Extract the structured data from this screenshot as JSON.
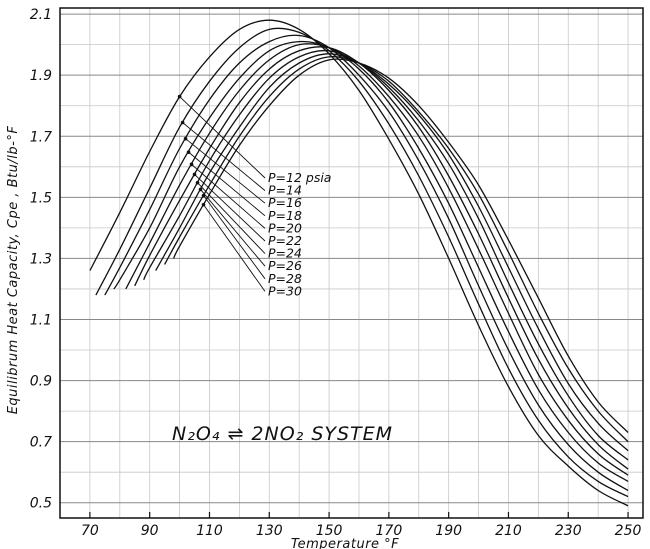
{
  "chart_data": {
    "type": "line",
    "title": "",
    "xlabel": "Temperature °F",
    "ylabel": "Equilibrum Heat Capacity, Cpe , Btu/lb-°F",
    "xlim": [
      60,
      255
    ],
    "ylim": [
      0.45,
      2.12
    ],
    "x_ticks": [
      "70",
      "90",
      "110",
      "130",
      "150",
      "170",
      "190",
      "210",
      "230",
      "250"
    ],
    "y_ticks": [
      "0.5",
      "0.7",
      "0.9",
      "1.1",
      "1.3",
      "1.5",
      "1.7",
      "1.9",
      "2.1"
    ],
    "grid": true,
    "annotation": "N₂O₄ ⇌ 2NO₂ SYSTEM",
    "series": [
      {
        "name": "P=12 psia",
        "points": [
          [
            70,
            1.26
          ],
          [
            80,
            1.45
          ],
          [
            90,
            1.65
          ],
          [
            100,
            1.83
          ],
          [
            110,
            1.96
          ],
          [
            120,
            2.05
          ],
          [
            130,
            2.08
          ],
          [
            140,
            2.05
          ],
          [
            150,
            1.97
          ],
          [
            160,
            1.85
          ],
          [
            170,
            1.69
          ],
          [
            180,
            1.51
          ],
          [
            190,
            1.3
          ],
          [
            200,
            1.08
          ],
          [
            210,
            0.88
          ],
          [
            220,
            0.72
          ],
          [
            230,
            0.62
          ],
          [
            240,
            0.54
          ],
          [
            250,
            0.49
          ]
        ]
      },
      {
        "name": "P=14",
        "points": [
          [
            72,
            1.18
          ],
          [
            80,
            1.33
          ],
          [
            90,
            1.53
          ],
          [
            100,
            1.73
          ],
          [
            110,
            1.88
          ],
          [
            120,
            1.99
          ],
          [
            130,
            2.05
          ],
          [
            140,
            2.04
          ],
          [
            150,
            1.98
          ],
          [
            160,
            1.88
          ],
          [
            170,
            1.74
          ],
          [
            180,
            1.57
          ],
          [
            190,
            1.37
          ],
          [
            200,
            1.15
          ],
          [
            210,
            0.94
          ],
          [
            220,
            0.77
          ],
          [
            230,
            0.65
          ],
          [
            240,
            0.57
          ],
          [
            250,
            0.52
          ]
        ]
      },
      {
        "name": "P=16",
        "points": [
          [
            75,
            1.18
          ],
          [
            80,
            1.27
          ],
          [
            90,
            1.46
          ],
          [
            100,
            1.66
          ],
          [
            110,
            1.82
          ],
          [
            120,
            1.94
          ],
          [
            130,
            2.01
          ],
          [
            140,
            2.03
          ],
          [
            150,
            1.99
          ],
          [
            160,
            1.9
          ],
          [
            170,
            1.78
          ],
          [
            180,
            1.62
          ],
          [
            190,
            1.43
          ],
          [
            200,
            1.21
          ],
          [
            210,
            1.0
          ],
          [
            220,
            0.82
          ],
          [
            230,
            0.69
          ],
          [
            240,
            0.6
          ],
          [
            250,
            0.54
          ]
        ]
      },
      {
        "name": "P=18",
        "points": [
          [
            78,
            1.2
          ],
          [
            80,
            1.23
          ],
          [
            90,
            1.4
          ],
          [
            100,
            1.6
          ],
          [
            110,
            1.76
          ],
          [
            120,
            1.89
          ],
          [
            130,
            1.98
          ],
          [
            140,
            2.01
          ],
          [
            150,
            1.99
          ],
          [
            160,
            1.92
          ],
          [
            170,
            1.81
          ],
          [
            180,
            1.66
          ],
          [
            190,
            1.48
          ],
          [
            200,
            1.27
          ],
          [
            210,
            1.06
          ],
          [
            220,
            0.87
          ],
          [
            230,
            0.73
          ],
          [
            240,
            0.63
          ],
          [
            250,
            0.57
          ]
        ]
      },
      {
        "name": "P=20",
        "points": [
          [
            82,
            1.2
          ],
          [
            90,
            1.35
          ],
          [
            100,
            1.54
          ],
          [
            110,
            1.71
          ],
          [
            120,
            1.85
          ],
          [
            130,
            1.95
          ],
          [
            140,
            2.0
          ],
          [
            150,
            1.99
          ],
          [
            160,
            1.93
          ],
          [
            170,
            1.83
          ],
          [
            180,
            1.7
          ],
          [
            190,
            1.53
          ],
          [
            200,
            1.33
          ],
          [
            210,
            1.12
          ],
          [
            220,
            0.92
          ],
          [
            230,
            0.77
          ],
          [
            240,
            0.66
          ],
          [
            250,
            0.59
          ]
        ]
      },
      {
        "name": "P=22",
        "points": [
          [
            85,
            1.21
          ],
          [
            90,
            1.31
          ],
          [
            100,
            1.49
          ],
          [
            110,
            1.66
          ],
          [
            120,
            1.81
          ],
          [
            130,
            1.92
          ],
          [
            140,
            1.98
          ],
          [
            150,
            1.99
          ],
          [
            160,
            1.94
          ],
          [
            170,
            1.85
          ],
          [
            180,
            1.73
          ],
          [
            190,
            1.57
          ],
          [
            200,
            1.38
          ],
          [
            210,
            1.17
          ],
          [
            220,
            0.97
          ],
          [
            230,
            0.81
          ],
          [
            240,
            0.69
          ],
          [
            250,
            0.61
          ]
        ]
      },
      {
        "name": "P=24",
        "points": [
          [
            88,
            1.23
          ],
          [
            90,
            1.27
          ],
          [
            100,
            1.44
          ],
          [
            110,
            1.62
          ],
          [
            120,
            1.77
          ],
          [
            130,
            1.89
          ],
          [
            140,
            1.96
          ],
          [
            150,
            1.98
          ],
          [
            160,
            1.94
          ],
          [
            170,
            1.86
          ],
          [
            180,
            1.75
          ],
          [
            190,
            1.61
          ],
          [
            200,
            1.43
          ],
          [
            210,
            1.22
          ],
          [
            220,
            1.02
          ],
          [
            230,
            0.85
          ],
          [
            240,
            0.72
          ],
          [
            250,
            0.64
          ]
        ]
      },
      {
        "name": "P=26",
        "points": [
          [
            92,
            1.26
          ],
          [
            100,
            1.4
          ],
          [
            110,
            1.58
          ],
          [
            120,
            1.73
          ],
          [
            130,
            1.86
          ],
          [
            140,
            1.94
          ],
          [
            150,
            1.97
          ],
          [
            160,
            1.94
          ],
          [
            170,
            1.87
          ],
          [
            180,
            1.77
          ],
          [
            190,
            1.64
          ],
          [
            200,
            1.47
          ],
          [
            210,
            1.27
          ],
          [
            220,
            1.07
          ],
          [
            230,
            0.89
          ],
          [
            240,
            0.76
          ],
          [
            250,
            0.67
          ]
        ]
      },
      {
        "name": "P=28",
        "points": [
          [
            95,
            1.28
          ],
          [
            100,
            1.37
          ],
          [
            110,
            1.54
          ],
          [
            120,
            1.7
          ],
          [
            130,
            1.83
          ],
          [
            140,
            1.92
          ],
          [
            150,
            1.96
          ],
          [
            160,
            1.94
          ],
          [
            170,
            1.88
          ],
          [
            180,
            1.78
          ],
          [
            190,
            1.66
          ],
          [
            200,
            1.51
          ],
          [
            210,
            1.32
          ],
          [
            220,
            1.12
          ],
          [
            230,
            0.94
          ],
          [
            240,
            0.8
          ],
          [
            250,
            0.7
          ]
        ]
      },
      {
        "name": "P=30",
        "points": [
          [
            98,
            1.3
          ],
          [
            100,
            1.34
          ],
          [
            110,
            1.51
          ],
          [
            120,
            1.67
          ],
          [
            130,
            1.8
          ],
          [
            140,
            1.9
          ],
          [
            150,
            1.95
          ],
          [
            160,
            1.94
          ],
          [
            170,
            1.89
          ],
          [
            180,
            1.8
          ],
          [
            190,
            1.68
          ],
          [
            200,
            1.54
          ],
          [
            210,
            1.36
          ],
          [
            220,
            1.17
          ],
          [
            230,
            0.98
          ],
          [
            240,
            0.83
          ],
          [
            250,
            0.73
          ]
        ]
      }
    ],
    "leaders_from_x": [
      100,
      101,
      102,
      103,
      104,
      105,
      106,
      107,
      108,
      108
    ]
  }
}
